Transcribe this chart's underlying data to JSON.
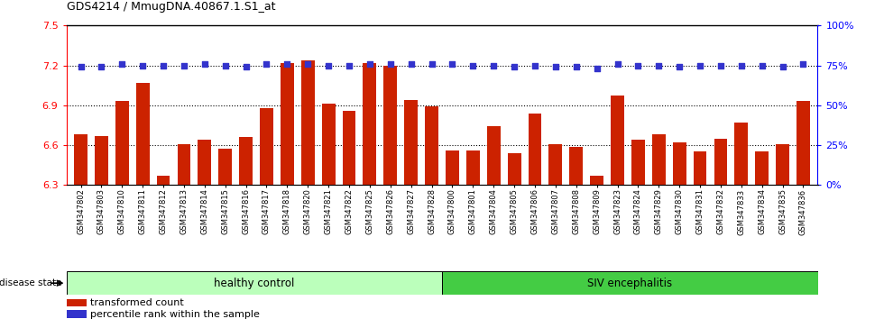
{
  "title": "GDS4214 / MmugDNA.40867.1.S1_at",
  "samples": [
    "GSM347802",
    "GSM347803",
    "GSM347810",
    "GSM347811",
    "GSM347812",
    "GSM347813",
    "GSM347814",
    "GSM347815",
    "GSM347816",
    "GSM347817",
    "GSM347818",
    "GSM347820",
    "GSM347821",
    "GSM347822",
    "GSM347825",
    "GSM347826",
    "GSM347827",
    "GSM347828",
    "GSM347800",
    "GSM347801",
    "GSM347804",
    "GSM347805",
    "GSM347806",
    "GSM347807",
    "GSM347808",
    "GSM347809",
    "GSM347823",
    "GSM347824",
    "GSM347829",
    "GSM347830",
    "GSM347831",
    "GSM347832",
    "GSM347833",
    "GSM347834",
    "GSM347835",
    "GSM347836"
  ],
  "bar_values": [
    6.68,
    6.67,
    6.93,
    7.07,
    6.37,
    6.61,
    6.64,
    6.57,
    6.66,
    6.88,
    7.22,
    7.24,
    6.91,
    6.86,
    7.22,
    7.2,
    6.94,
    6.89,
    6.56,
    6.56,
    6.74,
    6.54,
    6.84,
    6.61,
    6.59,
    6.37,
    6.97,
    6.64,
    6.68,
    6.62,
    6.55,
    6.65,
    6.77,
    6.55,
    6.61,
    6.93
  ],
  "percentile_values": [
    74,
    74,
    76,
    75,
    75,
    75,
    76,
    75,
    74,
    76,
    76,
    76,
    75,
    75,
    76,
    76,
    76,
    76,
    76,
    75,
    75,
    74,
    75,
    74,
    74,
    73,
    76,
    75,
    75,
    74,
    75,
    75,
    75,
    75,
    74,
    76
  ],
  "healthy_control_count": 18,
  "ylim_left": [
    6.3,
    7.5
  ],
  "ylim_right": [
    0,
    100
  ],
  "yticks_left": [
    6.3,
    6.6,
    6.9,
    7.2,
    7.5
  ],
  "yticks_right": [
    0,
    25,
    50,
    75,
    100
  ],
  "bar_color": "#cc2200",
  "dot_color": "#3333cc",
  "healthy_color": "#bbffbb",
  "siv_color": "#44cc44",
  "label_bar": "transformed count",
  "label_dot": "percentile rank within the sample",
  "label_healthy": "healthy control",
  "label_siv": "SIV encephalitis",
  "disease_state_label": "disease state"
}
